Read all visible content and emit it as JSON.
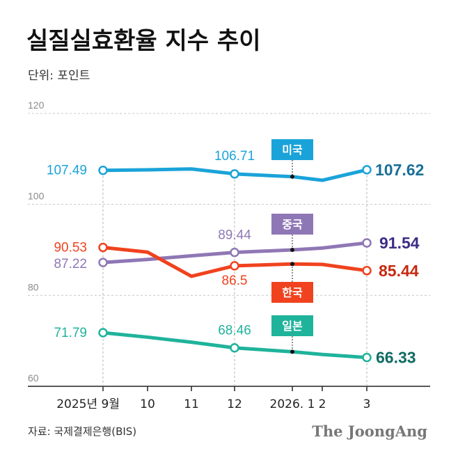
{
  "header": {
    "title": "실질실효환율 지수 추이",
    "unit": "단위: 포인트"
  },
  "footer": {
    "source": "자료: 국제결제은행(BIS)",
    "logo": "The JoongAng"
  },
  "chart_data": {
    "type": "line",
    "title": "실질실효환율 지수 추이",
    "ylabel": "단위: 포인트",
    "xlabel": "",
    "categories": [
      "2025년 9월",
      "10",
      "11",
      "12",
      "2026. 1",
      "2",
      "3"
    ],
    "ylim": [
      60,
      120
    ],
    "yticks": [
      60,
      80,
      100,
      120
    ],
    "grid": true,
    "series": [
      {
        "name": "미국",
        "color": "#1aa3d9",
        "values": [
          107.49,
          107.6,
          107.8,
          106.71,
          106.1,
          105.3,
          107.62
        ],
        "labels": [
          {
            "index": 0,
            "text": "107.49"
          },
          {
            "index": 3,
            "text": "106.71"
          },
          {
            "index": 6,
            "text": "107.62"
          }
        ],
        "badge_index": 4
      },
      {
        "name": "중국",
        "color": "#8f77b5",
        "values": [
          87.22,
          87.9,
          88.7,
          89.44,
          90.0,
          90.4,
          91.54
        ],
        "labels": [
          {
            "index": 0,
            "text": "87.22"
          },
          {
            "index": 3,
            "text": "89.44"
          },
          {
            "index": 6,
            "text": "91.54"
          }
        ],
        "badge_index": 4
      },
      {
        "name": "한국",
        "color": "#f0421e",
        "values": [
          90.53,
          89.5,
          84.2,
          86.5,
          86.9,
          86.8,
          85.44
        ],
        "labels": [
          {
            "index": 0,
            "text": "90.53"
          },
          {
            "index": 3,
            "text": "86.5"
          },
          {
            "index": 6,
            "text": "85.44"
          }
        ],
        "badge_index": 4
      },
      {
        "name": "일본",
        "color": "#1fb39b",
        "values": [
          71.79,
          70.8,
          69.7,
          68.46,
          67.6,
          67.0,
          66.33
        ],
        "labels": [
          {
            "index": 0,
            "text": "71.79"
          },
          {
            "index": 3,
            "text": "68.46"
          },
          {
            "index": 6,
            "text": "66.33"
          }
        ],
        "badge_index": 4
      }
    ]
  }
}
